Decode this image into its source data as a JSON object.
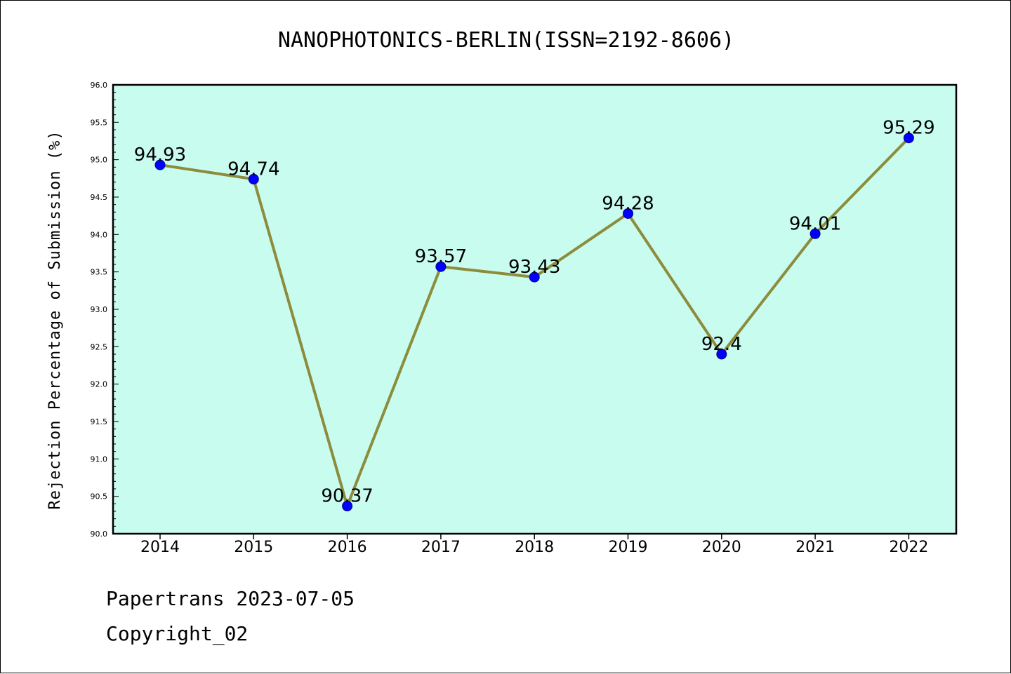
{
  "chart_data": {
    "type": "line",
    "title": "NANOPHOTONICS-BERLIN(ISSN=2192-8606)",
    "xlabel": "",
    "ylabel": "Rejection Percentage of Submission (%)",
    "categories": [
      "2014",
      "2015",
      "2016",
      "2017",
      "2018",
      "2019",
      "2020",
      "2021",
      "2022"
    ],
    "series": [
      {
        "values": [
          94.93,
          94.74,
          90.37,
          93.57,
          93.43,
          94.28,
          92.4,
          94.01,
          95.29
        ]
      }
    ],
    "data_labels": [
      "94.93",
      "94.74",
      "90.37",
      "93.57",
      "93.43",
      "94.28",
      "92.4",
      "94.01",
      "95.29"
    ],
    "ylim": [
      90.0,
      96.0
    ],
    "yticks": [
      "90.0",
      "90.5",
      "91.0",
      "91.5",
      "92.0",
      "92.5",
      "93.0",
      "93.5",
      "94.0",
      "94.5",
      "95.0",
      "95.5",
      "96.0"
    ],
    "grid": false,
    "legend": "none",
    "colors": {
      "plot_background": "#c8fcee",
      "line": "#8c8c3c",
      "marker": "#0000ff"
    }
  },
  "footer": {
    "source": "Papertrans 2023-07-05",
    "copyright": "Copyright_02"
  }
}
